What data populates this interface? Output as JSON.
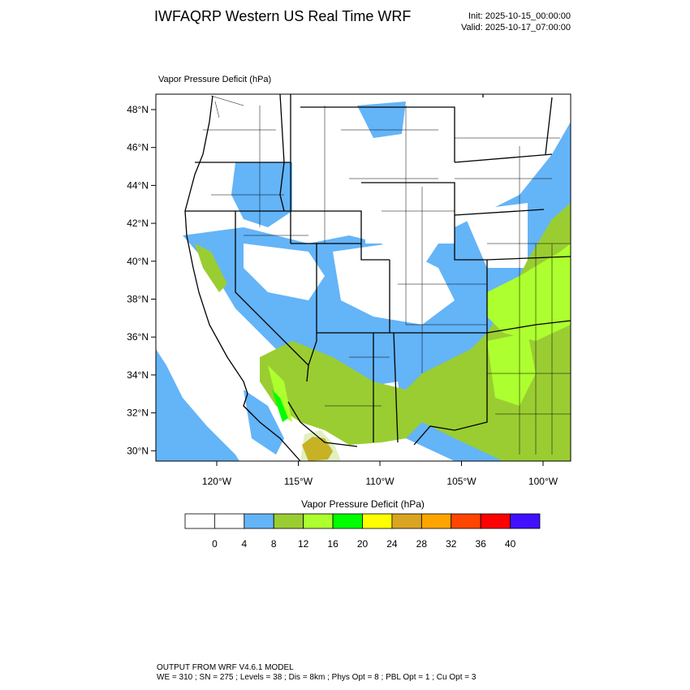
{
  "header": {
    "title": "IWFAQRP Western US Real Time WRF",
    "init": "Init: 2025-10-15_00:00:00",
    "valid": "Valid: 2025-10-17_07:00:00"
  },
  "map": {
    "field_title": "Vapor Pressure Deficit   (hPa)",
    "lat_labels": [
      "48°N",
      "46°N",
      "44°N",
      "42°N",
      "40°N",
      "38°N",
      "36°N",
      "34°N",
      "32°N",
      "30°N"
    ],
    "lon_labels": [
      "120°W",
      "115°W",
      "110°W",
      "105°W",
      "100°W"
    ]
  },
  "colorbar": {
    "title": "Vapor Pressure Deficit  (hPa)",
    "colors": [
      "#ffffff",
      "#ffffff",
      "#64b4f8",
      "#9acd32",
      "#adff2f",
      "#00ff00",
      "#ffff00",
      "#daa520",
      "#ffa500",
      "#ff4500",
      "#ff0000",
      "#4010ff"
    ],
    "labels": [
      "0",
      "4",
      "8",
      "12",
      "16",
      "20",
      "24",
      "28",
      "32",
      "36",
      "40"
    ]
  },
  "footer": {
    "line1": "OUTPUT FROM WRF V4.6.1 MODEL",
    "line2": "WE = 310 ; SN = 275 ; Levels = 38 ; Dis = 8km ; Phys Opt = 8 ; PBL Opt = 1 ; Cu Opt = 3"
  }
}
